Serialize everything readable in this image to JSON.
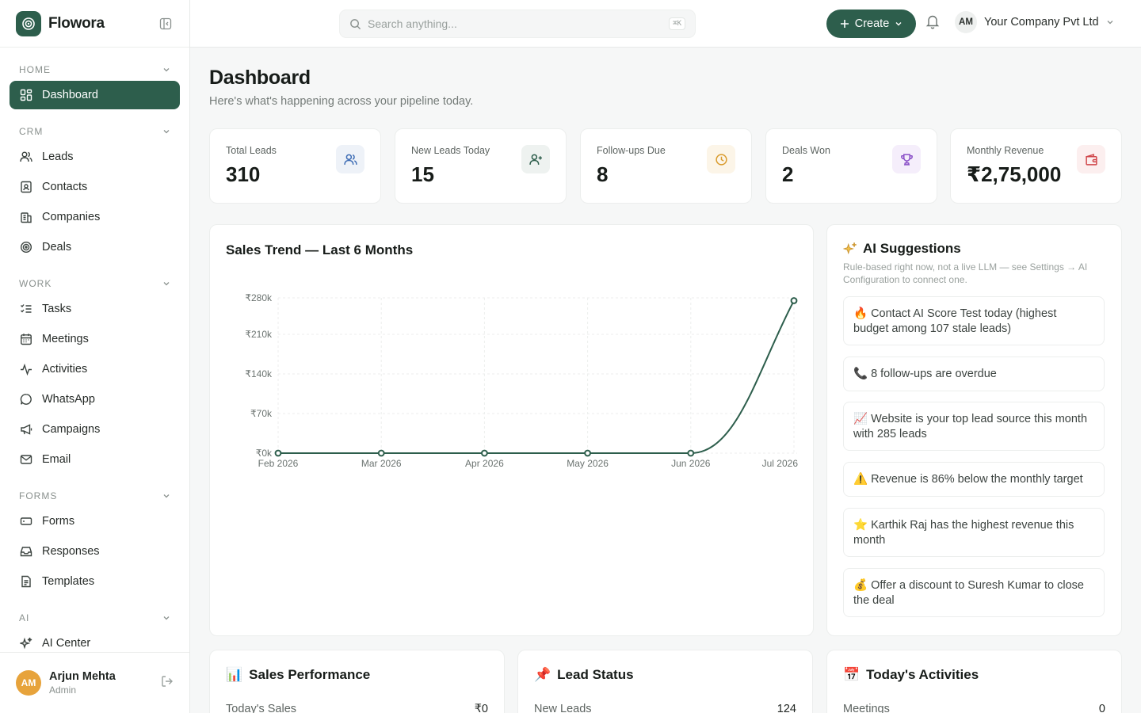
{
  "brand": {
    "name": "Flowora"
  },
  "sidebar": {
    "sections": [
      {
        "label": "HOME",
        "items": [
          {
            "label": "Dashboard",
            "icon": "dashboard-icon",
            "active": true
          }
        ]
      },
      {
        "label": "CRM",
        "items": [
          {
            "label": "Leads",
            "icon": "users-icon"
          },
          {
            "label": "Contacts",
            "icon": "contact-card-icon"
          },
          {
            "label": "Companies",
            "icon": "building-icon"
          },
          {
            "label": "Deals",
            "icon": "target-icon"
          }
        ]
      },
      {
        "label": "WORK",
        "items": [
          {
            "label": "Tasks",
            "icon": "task-list-icon"
          },
          {
            "label": "Meetings",
            "icon": "calendar-icon"
          },
          {
            "label": "Activities",
            "icon": "activity-icon"
          },
          {
            "label": "WhatsApp",
            "icon": "chat-bubble-icon"
          },
          {
            "label": "Campaigns",
            "icon": "megaphone-icon"
          },
          {
            "label": "Email",
            "icon": "mail-icon"
          }
        ]
      },
      {
        "label": "FORMS",
        "items": [
          {
            "label": "Forms",
            "icon": "form-icon"
          },
          {
            "label": "Responses",
            "icon": "inbox-icon"
          },
          {
            "label": "Templates",
            "icon": "document-icon"
          }
        ]
      },
      {
        "label": "AI",
        "items": [
          {
            "label": "AI Center",
            "icon": "sparkles-icon"
          }
        ]
      }
    ],
    "user": {
      "initials": "AM",
      "name": "Arjun Mehta",
      "role": "Admin"
    }
  },
  "topbar": {
    "search_placeholder": "Search anything...",
    "search_shortcut": "⌘K",
    "create_label": "Create",
    "company": {
      "initials": "AM",
      "name": "Your Company Pvt Ltd"
    }
  },
  "header": {
    "title": "Dashboard",
    "subtitle": "Here's what's happening across your pipeline today."
  },
  "kpis": [
    {
      "label": "Total Leads",
      "value": "310",
      "icon": "users-icon",
      "color": "#3f6db5",
      "bg": "#eef2f8"
    },
    {
      "label": "New Leads Today",
      "value": "15",
      "icon": "user-plus-icon",
      "color": "#2d5e4c",
      "bg": "#eef2f0"
    },
    {
      "label": "Follow-ups Due",
      "value": "8",
      "icon": "clock-icon",
      "color": "#d99a2b",
      "bg": "#fcf5e8"
    },
    {
      "label": "Deals Won",
      "value": "2",
      "icon": "trophy-icon",
      "color": "#8a4fc7",
      "bg": "#f5eefb"
    },
    {
      "label": "Monthly Revenue",
      "value": "₹2,75,000",
      "icon": "wallet-icon",
      "color": "#d0464a",
      "bg": "#fcefef"
    }
  ],
  "sales_trend": {
    "title": "Sales Trend — Last 6 Months"
  },
  "chart_data": {
    "type": "line",
    "title": "Sales Trend — Last 6 Months",
    "categories": [
      "Feb 2026",
      "Mar 2026",
      "Apr 2026",
      "May 2026",
      "Jun 2026",
      "Jul 2026"
    ],
    "values": [
      0,
      0,
      0,
      0,
      0,
      275000
    ],
    "yticks": [
      "₹0k",
      "₹70k",
      "₹140k",
      "₹210k",
      "₹280k"
    ],
    "ylim": [
      0,
      280000
    ],
    "grid": true,
    "color": "#2d5e4c"
  },
  "ai": {
    "title": "AI Suggestions",
    "note": "Rule-based right now, not a live LLM — see Settings → AI Configuration to connect one.",
    "suggestions": [
      {
        "emoji": "🔥",
        "text": "Contact AI Score Test today (highest budget among 107 stale leads)"
      },
      {
        "emoji": "📞",
        "text": "8 follow-ups are overdue"
      },
      {
        "emoji": "📈",
        "text": "Website is your top lead source this month with 285 leads"
      },
      {
        "emoji": "⚠️",
        "text": "Revenue is 86% below the monthly target"
      },
      {
        "emoji": "⭐",
        "text": "Karthik Raj has the highest revenue this month"
      },
      {
        "emoji": "💰",
        "text": "Offer a discount to Suresh Kumar to close the deal"
      }
    ]
  },
  "bottom_cards": [
    {
      "emoji": "📊",
      "title": "Sales Performance",
      "row_label": "Today's Sales",
      "row_value": "₹0"
    },
    {
      "emoji": "📌",
      "title": "Lead Status",
      "row_label": "New Leads",
      "row_value": "124"
    },
    {
      "emoji": "📅",
      "title": "Today's Activities",
      "row_label": "Meetings",
      "row_value": "0"
    }
  ]
}
